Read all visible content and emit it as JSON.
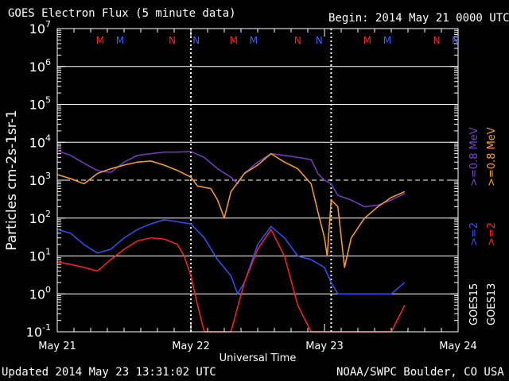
{
  "header": {
    "title": "GOES Electron Flux (5 minute data)",
    "begin": "Begin: 2014 May 21 0000 UTC"
  },
  "footer": {
    "updated": "Updated 2014 May 23 13:31:02 UTC",
    "source": "NOAA/SWPC Boulder, CO USA"
  },
  "chart_data": {
    "type": "line",
    "title": "GOES Electron Flux (5 minute data)",
    "xlabel": "Universal Time",
    "ylabel": "Particles cm-2s-1sr-1",
    "yscale": "log",
    "ylim": [
      0.1,
      10000000
    ],
    "xlim_days": [
      0,
      3
    ],
    "x_tick_labels": [
      "May 21",
      "May 22",
      "May 23",
      "May 24"
    ],
    "y_tick_labels": [
      {
        "base": "10",
        "exp": "-1"
      },
      {
        "base": "10",
        "exp": "0"
      },
      {
        "base": "10",
        "exp": "1"
      },
      {
        "base": "10",
        "exp": "2"
      },
      {
        "base": "10",
        "exp": "3"
      },
      {
        "base": "10",
        "exp": "4"
      },
      {
        "base": "10",
        "exp": "5"
      },
      {
        "base": "10",
        "exp": "6"
      },
      {
        "base": "10",
        "exp": "7"
      }
    ],
    "threshold": {
      "value": 1000,
      "style": "dashed",
      "color": "#ffffff"
    },
    "day_markers_days": [
      1.0,
      2.05
    ],
    "markers": [
      {
        "text": "M",
        "day": 0.32,
        "color": "#ff2020"
      },
      {
        "text": "M",
        "day": 0.47,
        "color": "#4060ff"
      },
      {
        "text": "N",
        "day": 0.86,
        "color": "#ff2020"
      },
      {
        "text": "N",
        "day": 1.04,
        "color": "#4060ff"
      },
      {
        "text": "M",
        "day": 1.32,
        "color": "#ff2020"
      },
      {
        "text": "M",
        "day": 1.47,
        "color": "#4060ff"
      },
      {
        "text": "N",
        "day": 1.8,
        "color": "#ff2020"
      },
      {
        "text": "N",
        "day": 1.96,
        "color": "#4060ff"
      },
      {
        "text": "M",
        "day": 2.32,
        "color": "#ff2020"
      },
      {
        "text": "M",
        "day": 2.47,
        "color": "#4060ff"
      },
      {
        "text": "N",
        "day": 2.84,
        "color": "#ff2020"
      },
      {
        "text": "N",
        "day": 2.98,
        "color": "#4060ff"
      }
    ],
    "legend": [
      {
        "label": "GOES15",
        "sublabel": ">=2",
        "unit": ">=0.8 MeV",
        "color_2": "#3050ff",
        "color_08": "#8040d0"
      },
      {
        "label": "GOES13",
        "sublabel": ">=2",
        "unit": ">=0.8 MeV",
        "color_2": "#ff2020",
        "color_08": "#ffa020"
      }
    ],
    "series": [
      {
        "name": "GOES15 >=0.8 MeV",
        "color": "#7a3ac8",
        "x": [
          0.0,
          0.1,
          0.2,
          0.3,
          0.4,
          0.5,
          0.6,
          0.7,
          0.8,
          0.9,
          1.0,
          1.1,
          1.2,
          1.3,
          1.35,
          1.4,
          1.5,
          1.6,
          1.7,
          1.8,
          1.9,
          1.95,
          2.0,
          2.05,
          2.1,
          2.2,
          2.3,
          2.4,
          2.5,
          2.6
        ],
        "y": [
          6000,
          4500,
          2800,
          1800,
          1600,
          3000,
          4500,
          5000,
          5500,
          5500,
          5700,
          4000,
          2000,
          1200,
          800,
          1500,
          3000,
          5000,
          4500,
          4000,
          3500,
          1500,
          1000,
          800,
          400,
          300,
          200,
          220,
          300,
          450
        ]
      },
      {
        "name": "GOES13 >=0.8 MeV",
        "color": "#ffa020",
        "x": [
          0.0,
          0.1,
          0.2,
          0.3,
          0.4,
          0.5,
          0.6,
          0.7,
          0.8,
          0.9,
          1.0,
          1.05,
          1.15,
          1.2,
          1.25,
          1.3,
          1.4,
          1.5,
          1.6,
          1.7,
          1.8,
          1.9,
          1.95,
          2.0,
          2.02,
          2.05,
          2.1,
          2.15,
          2.2,
          2.3,
          2.4,
          2.5,
          2.6
        ],
        "y": [
          1400,
          1100,
          800,
          1500,
          2000,
          2500,
          3000,
          3200,
          2500,
          1800,
          1200,
          700,
          600,
          300,
          100,
          500,
          1500,
          2500,
          5000,
          3000,
          2000,
          800,
          150,
          30,
          10,
          300,
          200,
          5,
          30,
          100,
          200,
          350,
          500
        ]
      },
      {
        "name": "GOES15 >=2 MeV",
        "color": "#3050ff",
        "x": [
          0.0,
          0.1,
          0.2,
          0.3,
          0.4,
          0.5,
          0.6,
          0.7,
          0.8,
          0.9,
          1.0,
          1.1,
          1.2,
          1.3,
          1.35,
          1.4,
          1.5,
          1.6,
          1.7,
          1.8,
          1.9,
          2.0,
          2.05,
          2.1,
          2.2,
          2.3,
          2.4,
          2.5,
          2.6
        ],
        "y": [
          50,
          40,
          20,
          12,
          15,
          30,
          50,
          70,
          90,
          80,
          70,
          30,
          8,
          3,
          1,
          2,
          20,
          60,
          30,
          10,
          8,
          5,
          2,
          1,
          1,
          1,
          1,
          1,
          2
        ]
      },
      {
        "name": "GOES13 >=2 MeV",
        "color": "#ff2020",
        "x": [
          0.0,
          0.1,
          0.2,
          0.3,
          0.4,
          0.5,
          0.6,
          0.7,
          0.8,
          0.9,
          0.95,
          1.0,
          1.05,
          1.1,
          1.2,
          1.3,
          1.4,
          1.5,
          1.6,
          1.7,
          1.8,
          1.9,
          1.95,
          2.0,
          2.1,
          2.2,
          2.3,
          2.4,
          2.5,
          2.6
        ],
        "y": [
          7,
          6,
          5,
          4,
          8,
          15,
          25,
          30,
          28,
          20,
          10,
          3,
          0.5,
          0.1,
          0.1,
          0.1,
          2,
          15,
          50,
          10,
          0.5,
          0.1,
          0.1,
          0.1,
          0.1,
          0.1,
          0.1,
          0.1,
          0.1,
          0.5
        ]
      }
    ]
  }
}
